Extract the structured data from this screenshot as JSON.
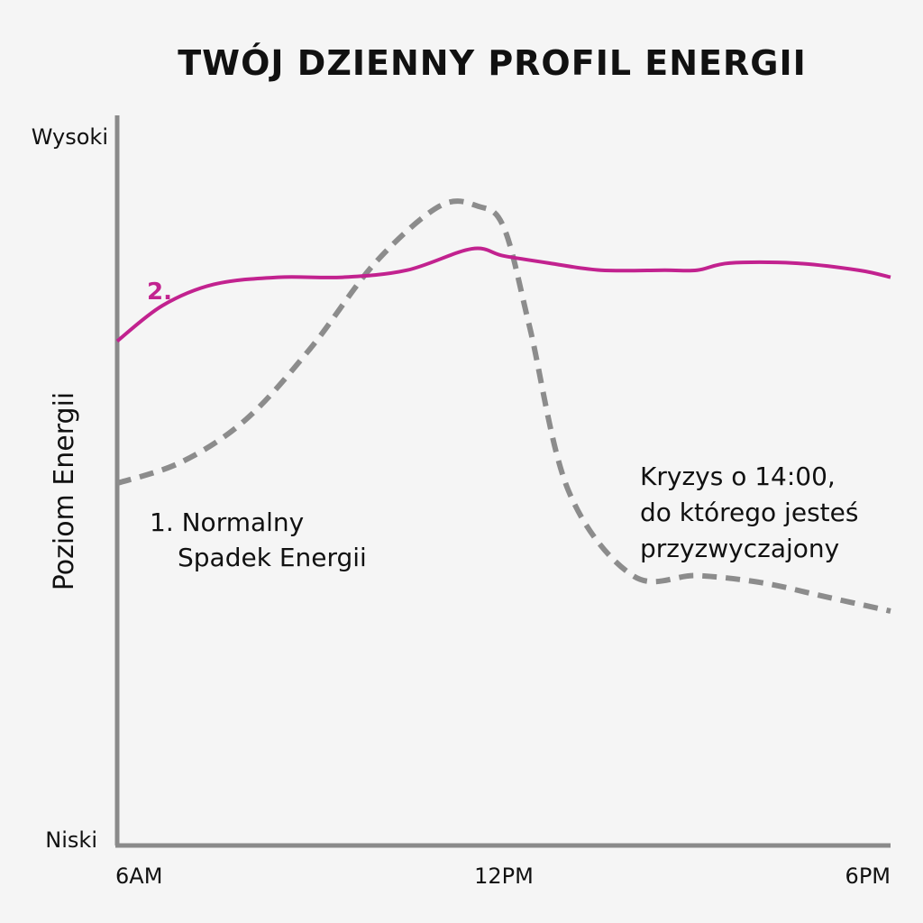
{
  "chart_data": {
    "type": "line",
    "title": "TWÓJ DZIENNY PROFIL ENERGII",
    "ylabel": "Poziom Energii",
    "xlabel": "",
    "x_ticks": [
      "6AM",
      "12PM",
      "6PM"
    ],
    "y_ticks": [
      "Niski",
      "Wysoki"
    ],
    "xlim": [
      6,
      18
    ],
    "ylim": [
      0,
      100
    ],
    "grid": false,
    "series": [
      {
        "name": "1. Normalny Spadek Energii",
        "style": "dashed",
        "color": "#8c8c8c",
        "x": [
          6,
          7,
          8,
          9,
          10,
          11,
          11.6,
          12,
          12.4,
          13,
          14,
          15,
          16,
          17,
          18
        ],
        "y": [
          51,
          54,
          60,
          70,
          82,
          90,
          90,
          87,
          73,
          50,
          38,
          38,
          37,
          35,
          33
        ]
      },
      {
        "name": "2.",
        "style": "solid",
        "color": "#c2228f",
        "x": [
          6,
          6.7,
          7.5,
          8.5,
          9.5,
          10.5,
          11.5,
          12,
          12.7,
          13.5,
          14.5,
          15,
          15.5,
          16.5,
          17.5,
          18
        ],
        "y": [
          71,
          76,
          79,
          80,
          80,
          81,
          84,
          83,
          82,
          81,
          81,
          81,
          82,
          82,
          81,
          80
        ]
      }
    ],
    "annotations": [
      {
        "id": "normal-dip",
        "lines": [
          "1. Normalny",
          "Spadek Energii"
        ]
      },
      {
        "id": "crash",
        "lines": [
          "Kryzys o 14:00,",
          "do którego jesteś",
          "przyzwyczajony"
        ]
      }
    ],
    "series_labels": [
      {
        "text": "2.",
        "color": "#c2228f"
      }
    ],
    "axis_color": "#8a8a8a"
  }
}
